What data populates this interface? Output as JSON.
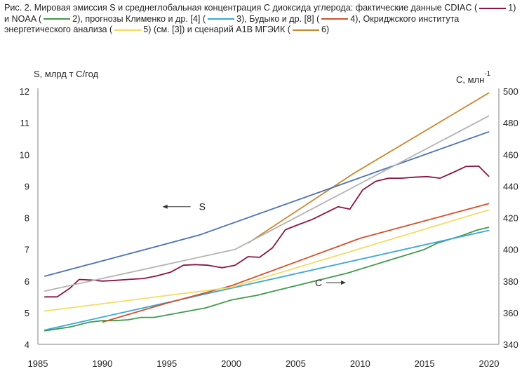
{
  "caption": {
    "prefix": "Рис. 2. Мировая эмиссия S и среднеглобальная концентрация С диоксида углерода: фактические данные CDIAC",
    "p1": "(",
    "p2": "1) и NOAA (",
    "p3": "2), прогнозы Клименко и др. [4] (",
    "p4": "3), Будыко и др. [8] (",
    "p5": "4), Окриджского института энергетического анализа (",
    "p6": "5) (см. [3]) и сценарий А1В МГЭИК (",
    "p7": "6)"
  },
  "colors": {
    "s1": "#8b1443",
    "s2": "#3f9a4a",
    "s3": "#3aa7d4",
    "s4": "#d2512c",
    "s5": "#f2dc60",
    "s6": "#c8892e",
    "blue": "#4a72b4",
    "gray": "#b3b3b3",
    "axis": "#808080"
  },
  "chart_data": {
    "type": "line",
    "xlabel": "",
    "ylabel_left": "S, млрд т С/год",
    "ylabel_right_main": "С, млн",
    "ylabel_right_sup": "-1",
    "xlim": [
      1985,
      2020
    ],
    "ylim_left": [
      4,
      12
    ],
    "ylim_right": [
      340,
      500
    ],
    "x_ticks": [
      1985,
      1990,
      1995,
      2000,
      2005,
      2010,
      2015,
      2020
    ],
    "y_ticks_left": [
      4,
      5,
      6,
      7,
      8,
      9,
      10,
      11,
      12
    ],
    "y_ticks_right": [
      340,
      360,
      380,
      400,
      420,
      440,
      460,
      480,
      500
    ],
    "annotations": [
      {
        "text": "S",
        "arrow": "left",
        "x": 1997.5,
        "y": 8.35
      },
      {
        "text": "C",
        "arrow": "right",
        "x": 2006.5,
        "y": 5.95
      }
    ],
    "series": [
      {
        "color_key": "s1",
        "axis": "left",
        "x": [
          1985.5,
          1986.5,
          1987.5,
          1988.2,
          1989.2,
          1990,
          1991,
          1992,
          1993.2,
          1994.2,
          1995.3,
          1996.3,
          1997.2,
          1998.2,
          1999.3,
          2000.3,
          2001.3,
          2002.2,
          2003.2,
          2004.2,
          2005.2,
          2006.3,
          2007.3,
          2008.3,
          2009.2,
          2010.2,
          2011.2,
          2012.2,
          2013.2,
          2014.2,
          2015.2,
          2016.2,
          2017.2,
          2018.2,
          2019.2,
          2020
        ],
        "y": [
          5.5,
          5.5,
          5.78,
          6.05,
          6.03,
          6.0,
          6.02,
          6.05,
          6.08,
          6.16,
          6.28,
          6.5,
          6.52,
          6.5,
          6.42,
          6.5,
          6.77,
          6.75,
          7.05,
          7.62,
          7.78,
          7.95,
          8.15,
          8.35,
          8.27,
          8.88,
          9.15,
          9.25,
          9.25,
          9.28,
          9.3,
          9.25,
          9.43,
          9.62,
          9.63,
          9.3
        ]
      },
      {
        "color_key": "s2",
        "axis": "right",
        "x": [
          1985.5,
          1987.5,
          1989,
          1990,
          1991,
          1992,
          1993,
          1994,
          1995,
          1996,
          1997,
          1998,
          1999,
          2000,
          2001,
          2002,
          2003,
          2004,
          2005,
          2006,
          2007,
          2008,
          2009,
          2010,
          2011,
          2012,
          2013,
          2014,
          2015,
          2016,
          2017,
          2018,
          2019,
          2020
        ],
        "y": [
          348.5,
          351,
          354,
          355,
          355,
          355.5,
          357,
          357,
          358.5,
          360,
          361.5,
          363,
          365.5,
          368,
          369.5,
          371,
          373,
          375,
          377,
          379,
          381,
          383,
          385,
          387.5,
          390,
          392.5,
          395,
          397.5,
          400,
          404,
          406.5,
          409,
          412,
          414
        ]
      },
      {
        "color_key": "s3",
        "axis": "right",
        "x": [
          1985.5,
          2020
        ],
        "y": [
          349,
          412
        ]
      },
      {
        "color_key": "s4",
        "axis": "right",
        "x": [
          1990,
          1995,
          2000,
          2005,
          2010,
          2015,
          2020
        ],
        "y": [
          354,
          366,
          377,
          392,
          407,
          418,
          429
        ]
      },
      {
        "color_key": "s5",
        "axis": "right",
        "x": [
          1985.5,
          2000,
          2020
        ],
        "y": [
          361,
          376,
          425
        ]
      },
      {
        "color_key": "s6",
        "axis": "right",
        "x": [
          2001.3,
          2009.5,
          2020
        ],
        "y": [
          404,
          448,
          499
        ]
      },
      {
        "color_key": "blue",
        "axis": "left",
        "x": [
          1985.5,
          1997.5,
          2020
        ],
        "y": [
          6.15,
          7.45,
          10.72
        ]
      },
      {
        "color_key": "gray",
        "axis": "left",
        "x": [
          1985.5,
          2000.3,
          2020
        ],
        "y": [
          5.68,
          7.0,
          11.22
        ]
      }
    ]
  }
}
